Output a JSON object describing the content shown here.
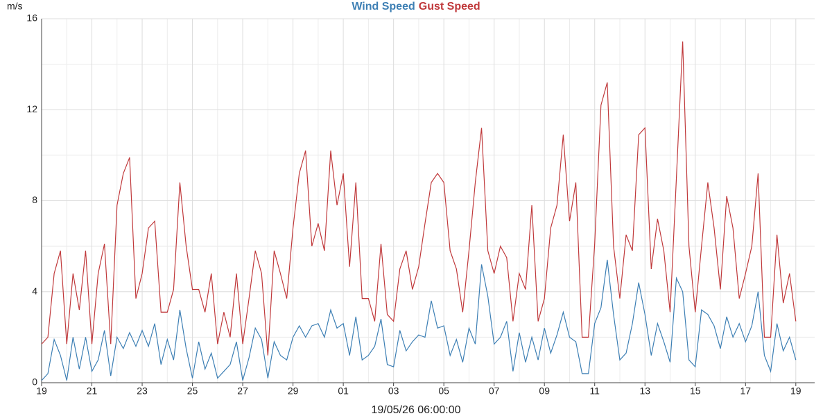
{
  "chart_data": {
    "type": "line",
    "y_label": "m/s",
    "x_label": "19/05/26 06:00:00",
    "xlim": [
      0,
      30.75
    ],
    "xticks": [
      {
        "value": 0,
        "label": "19"
      },
      {
        "value": 2,
        "label": "21"
      },
      {
        "value": 4,
        "label": "23"
      },
      {
        "value": 6,
        "label": "25"
      },
      {
        "value": 8,
        "label": "27"
      },
      {
        "value": 10,
        "label": "29"
      },
      {
        "value": 12,
        "label": "01"
      },
      {
        "value": 14,
        "label": "03"
      },
      {
        "value": 16,
        "label": "05"
      },
      {
        "value": 18,
        "label": "07"
      },
      {
        "value": 20,
        "label": "09"
      },
      {
        "value": 22,
        "label": "11"
      },
      {
        "value": 24,
        "label": "13"
      },
      {
        "value": 26,
        "label": "15"
      },
      {
        "value": 28,
        "label": "17"
      },
      {
        "value": 30,
        "label": "19"
      }
    ],
    "xminor": [
      1,
      3,
      5,
      7,
      9,
      11,
      13,
      15,
      17,
      19,
      21,
      23,
      25,
      27,
      29
    ],
    "ylim": [
      0,
      16
    ],
    "yticks": [
      0,
      4,
      8,
      12,
      16
    ],
    "yminor": [
      2,
      6,
      10,
      14
    ],
    "grid": true,
    "x": [
      0,
      0.25,
      0.5,
      0.75,
      1,
      1.25,
      1.5,
      1.75,
      2,
      2.25,
      2.5,
      2.75,
      3,
      3.25,
      3.5,
      3.75,
      4,
      4.25,
      4.5,
      4.75,
      5,
      5.25,
      5.5,
      5.75,
      6,
      6.25,
      6.5,
      6.75,
      7,
      7.25,
      7.5,
      7.75,
      8,
      8.25,
      8.5,
      8.75,
      9,
      9.25,
      9.5,
      9.75,
      10,
      10.25,
      10.5,
      10.75,
      11,
      11.25,
      11.5,
      11.75,
      12,
      12.25,
      12.5,
      12.75,
      13,
      13.25,
      13.5,
      13.75,
      14,
      14.25,
      14.5,
      14.75,
      15,
      15.25,
      15.5,
      15.75,
      16,
      16.25,
      16.5,
      16.75,
      17,
      17.25,
      17.5,
      17.75,
      18,
      18.25,
      18.5,
      18.75,
      19,
      19.25,
      19.5,
      19.75,
      20,
      20.25,
      20.5,
      20.75,
      21,
      21.25,
      21.5,
      21.75,
      22,
      22.25,
      22.5,
      22.75,
      23,
      23.25,
      23.5,
      23.75,
      24,
      24.25,
      24.5,
      24.75,
      25,
      25.25,
      25.5,
      25.75,
      26,
      26.25,
      26.5,
      26.75,
      27,
      27.25,
      27.5,
      27.75,
      28,
      28.25,
      28.5,
      28.75,
      29,
      29.25,
      29.5,
      29.75,
      30
    ],
    "series": [
      {
        "name": "Wind Speed",
        "color": "#3d7fb4",
        "values": [
          0.1,
          0.4,
          1.9,
          1.2,
          0.1,
          2.0,
          0.6,
          2.0,
          0.5,
          1.0,
          2.3,
          0.3,
          2.0,
          1.5,
          2.2,
          1.6,
          2.3,
          1.6,
          2.6,
          0.8,
          1.9,
          1.0,
          3.2,
          1.5,
          0.2,
          1.8,
          0.6,
          1.3,
          0.2,
          0.5,
          0.8,
          1.8,
          0.1,
          1.1,
          2.4,
          1.9,
          0.2,
          1.8,
          1.2,
          1.0,
          2.0,
          2.5,
          2.0,
          2.5,
          2.6,
          2.0,
          3.2,
          2.4,
          2.6,
          1.2,
          2.9,
          1.0,
          1.2,
          1.6,
          2.8,
          0.8,
          0.7,
          2.3,
          1.4,
          1.8,
          2.1,
          2.0,
          3.6,
          2.4,
          2.5,
          1.2,
          1.9,
          0.9,
          2.4,
          1.7,
          5.2,
          3.8,
          1.7,
          2.0,
          2.7,
          0.5,
          2.2,
          0.9,
          2.0,
          1.0,
          2.4,
          1.3,
          2.1,
          3.1,
          2.0,
          1.8,
          0.4,
          0.4,
          2.6,
          3.3,
          5.4,
          3.0,
          1.0,
          1.3,
          2.6,
          4.4,
          3.0,
          1.2,
          2.6,
          1.8,
          0.9,
          4.6,
          4.0,
          1.0,
          0.7,
          3.2,
          3.0,
          2.5,
          1.5,
          2.9,
          2.0,
          2.6,
          1.8,
          2.5,
          4.0,
          1.2,
          0.5,
          2.6,
          1.4,
          2.0,
          1.0
        ]
      },
      {
        "name": "Gust Speed",
        "color": "#c0393b",
        "values": [
          1.7,
          2.0,
          4.8,
          5.8,
          1.7,
          4.8,
          3.2,
          5.8,
          1.7,
          4.8,
          6.1,
          1.7,
          7.8,
          9.2,
          9.9,
          3.7,
          4.8,
          6.8,
          7.1,
          3.1,
          3.1,
          4.1,
          8.8,
          6.0,
          4.1,
          4.1,
          3.1,
          4.8,
          1.7,
          3.1,
          2.0,
          4.8,
          1.7,
          3.7,
          5.8,
          4.8,
          1.2,
          5.8,
          4.8,
          3.7,
          6.8,
          9.2,
          10.2,
          6.0,
          7.0,
          5.8,
          10.2,
          7.8,
          9.2,
          5.1,
          8.8,
          3.7,
          3.7,
          2.7,
          6.1,
          3.0,
          2.7,
          5.0,
          5.8,
          4.1,
          5.1,
          7.0,
          8.8,
          9.2,
          8.8,
          5.8,
          5.0,
          3.1,
          5.8,
          8.8,
          11.2,
          5.8,
          4.8,
          6.0,
          5.5,
          2.7,
          4.8,
          4.1,
          7.8,
          2.7,
          3.7,
          6.8,
          7.8,
          10.9,
          7.1,
          8.8,
          2.0,
          2.0,
          6.1,
          12.2,
          13.2,
          6.0,
          3.7,
          6.5,
          5.8,
          10.9,
          11.2,
          5.0,
          7.2,
          5.8,
          3.1,
          9.0,
          15.0,
          6.0,
          3.1,
          6.0,
          8.8,
          6.8,
          4.1,
          8.2,
          6.8,
          3.7,
          4.8,
          6.0,
          9.2,
          2.0,
          2.0,
          6.5,
          3.5,
          4.8,
          2.7
        ]
      }
    ]
  }
}
